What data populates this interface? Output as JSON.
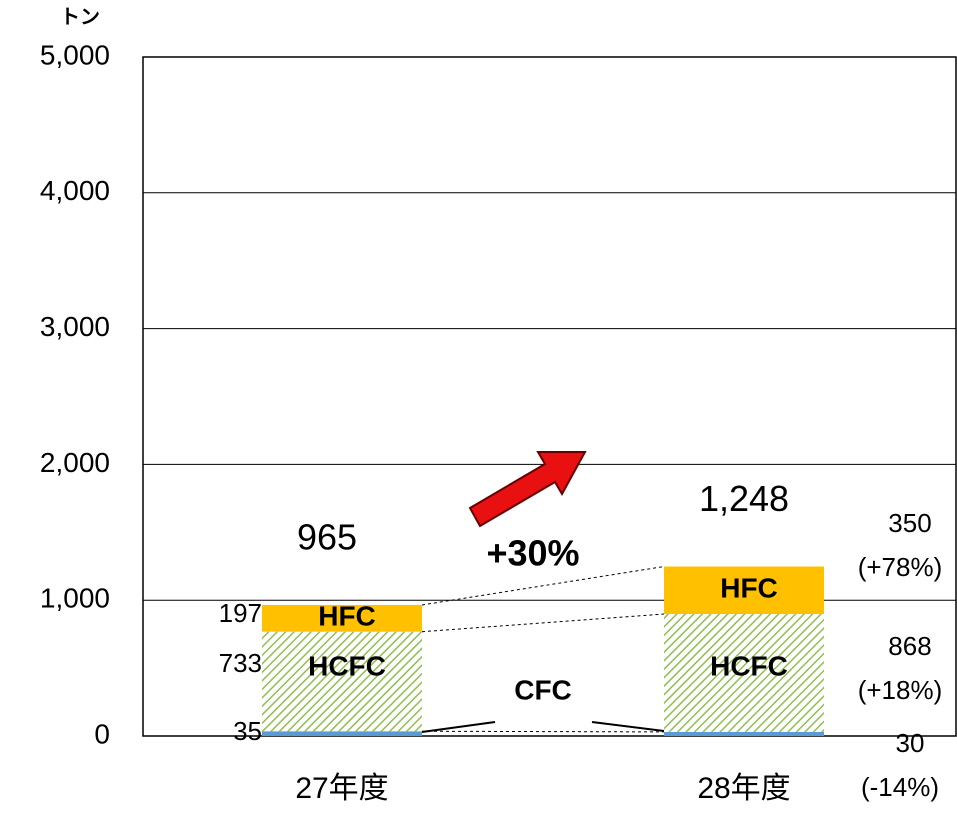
{
  "chart_data": {
    "type": "stacked_bar",
    "unit_label": "トン",
    "categories": [
      "27年度",
      "28年度"
    ],
    "series": [
      {
        "name": "CFC",
        "color": "#5b9bd5",
        "values": [
          35,
          30
        ],
        "change_label": "(-14%)",
        "change_color": "#1f3fd0"
      },
      {
        "name": "HCFC",
        "color": "#8fbf4f",
        "values": [
          733,
          868
        ],
        "change_label": "(+18%)",
        "change_color": "#e8141b"
      },
      {
        "name": "HFC",
        "color": "#ffc000",
        "values": [
          197,
          350
        ],
        "change_label": "(+78%)",
        "change_color": "#e8141b"
      }
    ],
    "totals": [
      965,
      1248
    ],
    "total_labels": [
      "965",
      "1,248"
    ],
    "annotation": "+30%",
    "ylim": [
      0,
      5000
    ],
    "yticks": [
      0,
      {
        "value": 1000,
        "label": "1,000"
      },
      {
        "value": 2000,
        "label": "2,000"
      },
      {
        "value": 3000,
        "label": "3,000"
      },
      {
        "value": 4000,
        "label": "4,000"
      },
      {
        "value": 5000,
        "label": "5,000"
      }
    ],
    "grid": true
  }
}
